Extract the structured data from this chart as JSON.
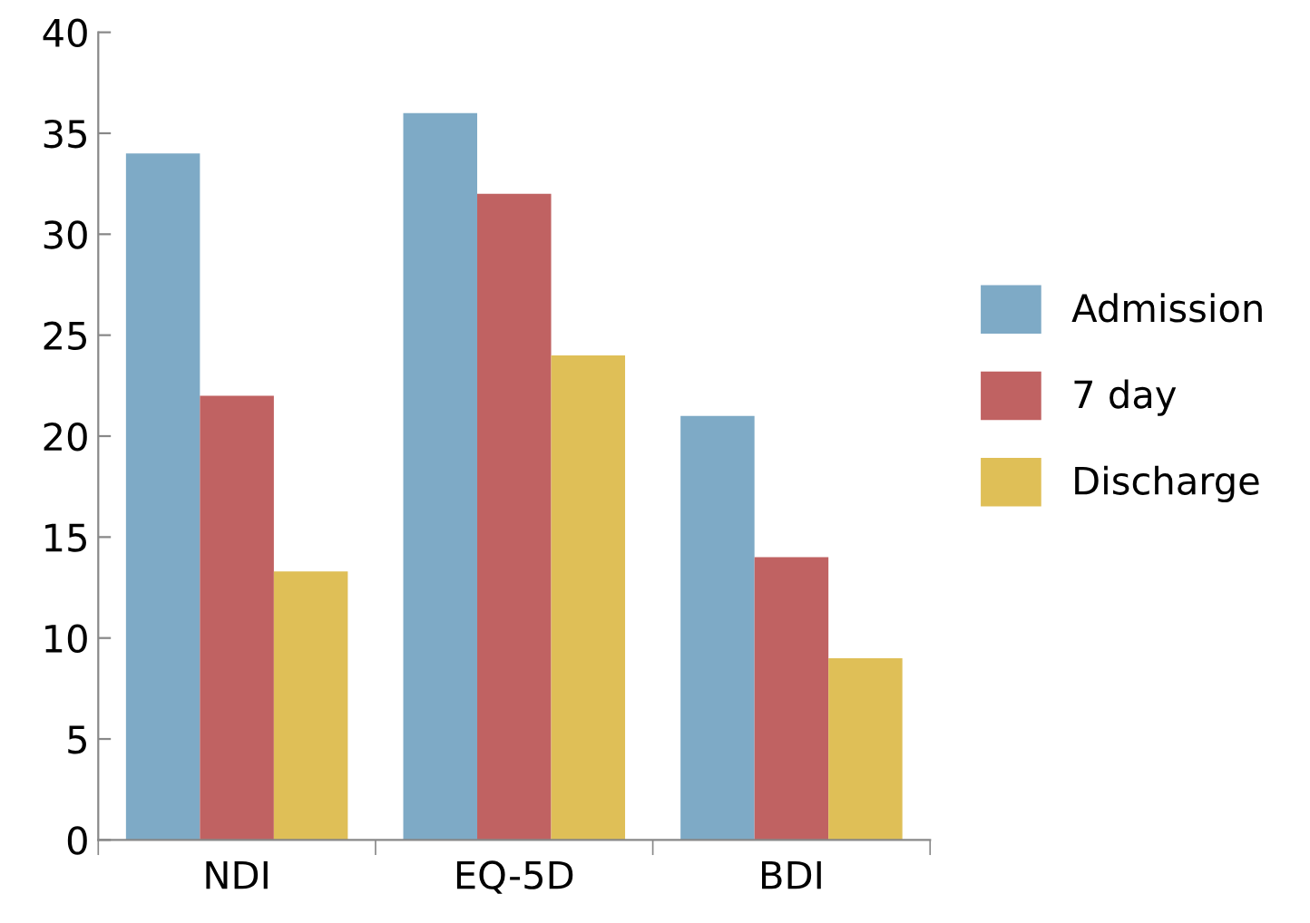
{
  "chart_data": {
    "type": "bar",
    "categories": [
      "NDI",
      "EQ-5D",
      "BDI"
    ],
    "series": [
      {
        "name": "Admission",
        "color": "#7eaac6",
        "values": [
          34,
          36,
          21
        ]
      },
      {
        "name": "7 day",
        "color": "#c06262",
        "values": [
          22,
          32,
          14
        ]
      },
      {
        "name": "Discharge",
        "color": "#dfbf57",
        "values": [
          13.3,
          24,
          9
        ]
      }
    ],
    "ylim": [
      0,
      40
    ],
    "yticks": [
      0,
      5,
      10,
      15,
      20,
      25,
      30,
      35,
      40
    ],
    "grid": false,
    "legend": "right"
  }
}
